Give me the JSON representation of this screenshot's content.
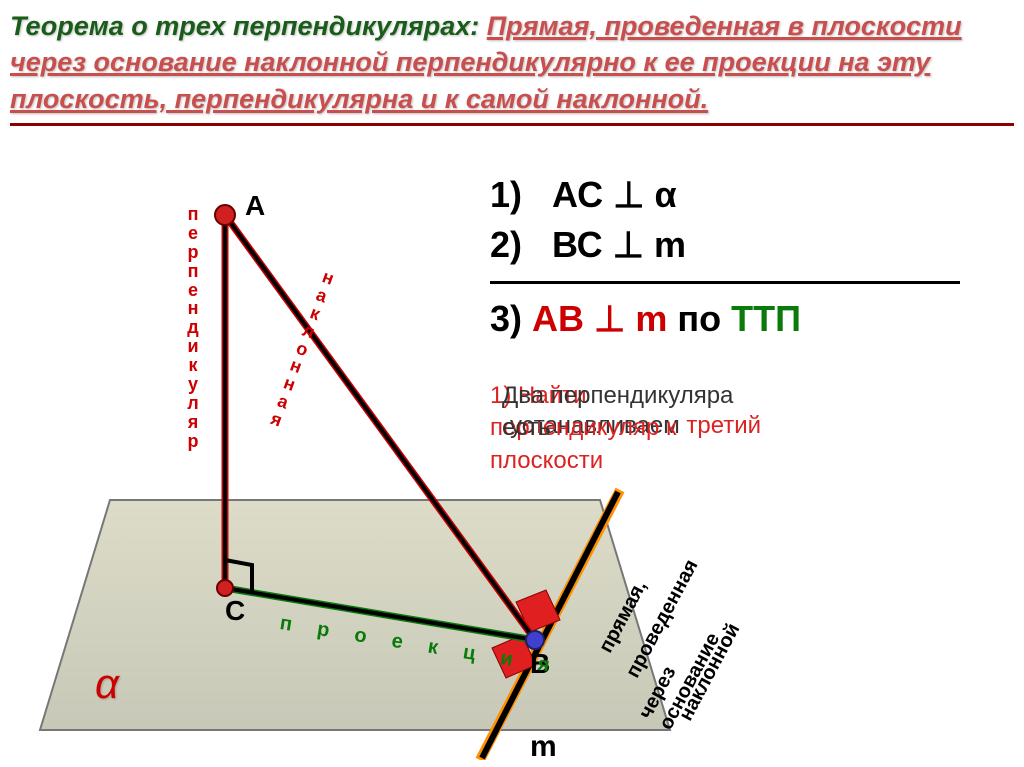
{
  "title": {
    "part1": "Теорема о трех перпендикулярах:",
    "part2": "Прямая, проведенная в плоскости через основание наклонной перпендикулярно к ее проекции на эту плоскость, перпендикулярна и к самой наклонной.",
    "color1": "#1a5c1a",
    "color2": "#c94f4f"
  },
  "conditions": {
    "c1_num": "1)",
    "c1": "АС ⊥ α",
    "c2_num": "2)",
    "c2": "ВС ⊥ m",
    "c3_num": "3)",
    "c3_ab": "АВ ⊥ m",
    "c3_po": " по ",
    "c3_ttp": "ТТП"
  },
  "notes": {
    "line1a": "1) Найти перпендикуляр к плоскости",
    "line1b": "Два перпендикуляра есть",
    "line2a": "устанавливаем ",
    "line2b": "третий"
  },
  "diagram": {
    "points": {
      "A": "А",
      "B": "В",
      "C": "С"
    },
    "alpha": "α",
    "m": "m",
    "label_perp": "перпендикуляр",
    "label_nakl": "наклонная",
    "label_proj": "п р о е к ц и я",
    "label_line1": "прямая,",
    "label_line2": "проведенная",
    "label_line3": "через основание",
    "label_line4": "наклонной",
    "colors": {
      "plane_fill": "#d9dace",
      "plane_stroke": "#888",
      "line_black": "#000000",
      "line_red": "#cc0000",
      "line_orange": "#ff9000",
      "line_green": "#0a7a0a",
      "square_red": "#e02020",
      "point_fill": "#d02020",
      "pointB_fill": "#4040d0"
    }
  }
}
